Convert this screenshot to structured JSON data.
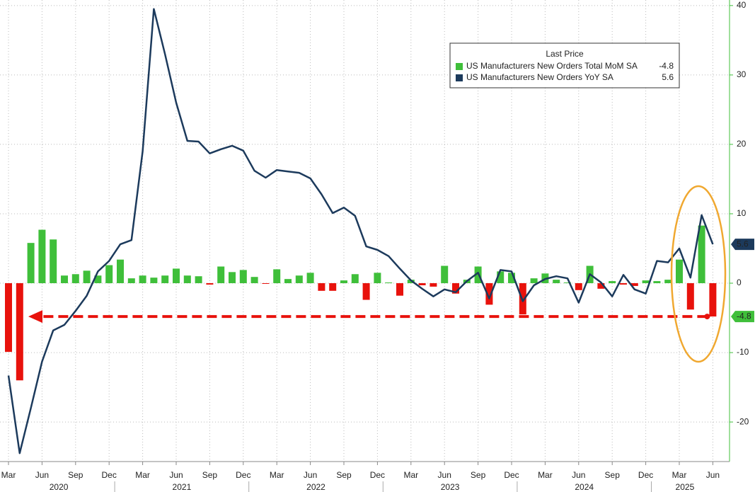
{
  "chart_data": {
    "type": "bar_line",
    "legend_title": "Last Price",
    "x": [
      "2020-03",
      "2020-04",
      "2020-05",
      "2020-06",
      "2020-07",
      "2020-08",
      "2020-09",
      "2020-10",
      "2020-11",
      "2020-12",
      "2021-01",
      "2021-02",
      "2021-03",
      "2021-04",
      "2021-05",
      "2021-06",
      "2021-07",
      "2021-08",
      "2021-09",
      "2021-10",
      "2021-11",
      "2021-12",
      "2022-01",
      "2022-02",
      "2022-03",
      "2022-04",
      "2022-05",
      "2022-06",
      "2022-07",
      "2022-08",
      "2022-09",
      "2022-10",
      "2022-11",
      "2022-12",
      "2023-01",
      "2023-02",
      "2023-03",
      "2023-04",
      "2023-05",
      "2023-06",
      "2023-07",
      "2023-08",
      "2023-09",
      "2023-10",
      "2023-11",
      "2023-12",
      "2024-01",
      "2024-02",
      "2024-03",
      "2024-04",
      "2024-05",
      "2024-06",
      "2024-07",
      "2024-08",
      "2024-09",
      "2024-10",
      "2024-11",
      "2024-12",
      "2025-01",
      "2025-02",
      "2025-03",
      "2025-04",
      "2025-05",
      "2025-06"
    ],
    "series": [
      {
        "name": "US Manufacturers New Orders Total MoM SA",
        "kind": "bar",
        "color": "#3fbf3a",
        "negative_color": "#e8120c",
        "values": [
          -9.9,
          -14,
          5.8,
          7.7,
          6.3,
          1.1,
          1.3,
          1.8,
          1.1,
          2.6,
          3.4,
          0.7,
          1.1,
          0.8,
          1.1,
          2.1,
          1.1,
          1.0,
          -0.2,
          2.4,
          1.6,
          1.9,
          0.9,
          -0.1,
          2.0,
          0.6,
          1.1,
          1.5,
          -1.1,
          -1.1,
          0.4,
          1.3,
          -2.4,
          1.5,
          0.1,
          -1.8,
          0.5,
          -0.3,
          -0.5,
          2.5,
          -1.5,
          0.5,
          2.4,
          -3.1,
          1.7,
          1.5,
          -4.5,
          0.7,
          1.4,
          0.5,
          0.1,
          -1.0,
          2.5,
          -0.8,
          0.3,
          -0.2,
          -0.4,
          0.4,
          0.3,
          0.5,
          3.4,
          -3.8,
          8.3,
          -4.8
        ]
      },
      {
        "name": "US Manufacturers New Orders YoY SA",
        "kind": "line",
        "color": "#1c3a5c",
        "values": [
          -13.3,
          -24.5,
          -18,
          -11.3,
          -6.8,
          -6,
          -4,
          -1.8,
          1.7,
          3.2,
          5.6,
          6.2,
          19,
          39.5,
          33,
          26,
          20.5,
          20.4,
          18.7,
          19.3,
          19.8,
          19.1,
          16.2,
          15.2,
          16.3,
          16.1,
          15.9,
          15.1,
          12.8,
          10.1,
          10.9,
          9.7,
          5.3,
          4.8,
          3.9,
          2.1,
          0.4,
          -0.8,
          -1.9,
          -0.9,
          -1.3,
          0.3,
          1.5,
          -2.2,
          1.9,
          1.7,
          -2.6,
          -0.3,
          0.6,
          1.0,
          0.7,
          -2.8,
          1.3,
          0.1,
          -1.9,
          1.2,
          -0.9,
          -1.5,
          3.2,
          3.0,
          5.0,
          0.8,
          9.8,
          5.6
        ]
      }
    ],
    "ylim": [
      -25.7,
      40.8
    ],
    "yticks": [
      40,
      30,
      20,
      10,
      0,
      -10,
      -20
    ],
    "xticks": [
      {
        "value": "2020-03",
        "label": "Mar"
      },
      {
        "value": "2020-06",
        "label": "Jun"
      },
      {
        "value": "2020-09",
        "label": "Sep"
      },
      {
        "value": "2020-12",
        "label": "Dec"
      },
      {
        "value": "2021-03",
        "label": "Mar"
      },
      {
        "value": "2021-06",
        "label": "Jun"
      },
      {
        "value": "2021-09",
        "label": "Sep"
      },
      {
        "value": "2021-12",
        "label": "Dec"
      },
      {
        "value": "2022-03",
        "label": "Mar"
      },
      {
        "value": "2022-06",
        "label": "Jun"
      },
      {
        "value": "2022-09",
        "label": "Sep"
      },
      {
        "value": "2022-12",
        "label": "Dec"
      },
      {
        "value": "2023-03",
        "label": "Mar"
      },
      {
        "value": "2023-06",
        "label": "Jun"
      },
      {
        "value": "2023-09",
        "label": "Sep"
      },
      {
        "value": "2023-12",
        "label": "Dec"
      },
      {
        "value": "2024-03",
        "label": "Mar"
      },
      {
        "value": "2024-06",
        "label": "Jun"
      },
      {
        "value": "2024-09",
        "label": "Sep"
      },
      {
        "value": "2024-12",
        "label": "Dec"
      },
      {
        "value": "2025-03",
        "label": "Mar"
      },
      {
        "value": "2025-06",
        "label": "Jun"
      }
    ],
    "years": [
      2020,
      2021,
      2022,
      2023,
      2024,
      2025
    ],
    "grid": true,
    "axis_side": "right",
    "axis_color": "#3fbf3a"
  }
}
